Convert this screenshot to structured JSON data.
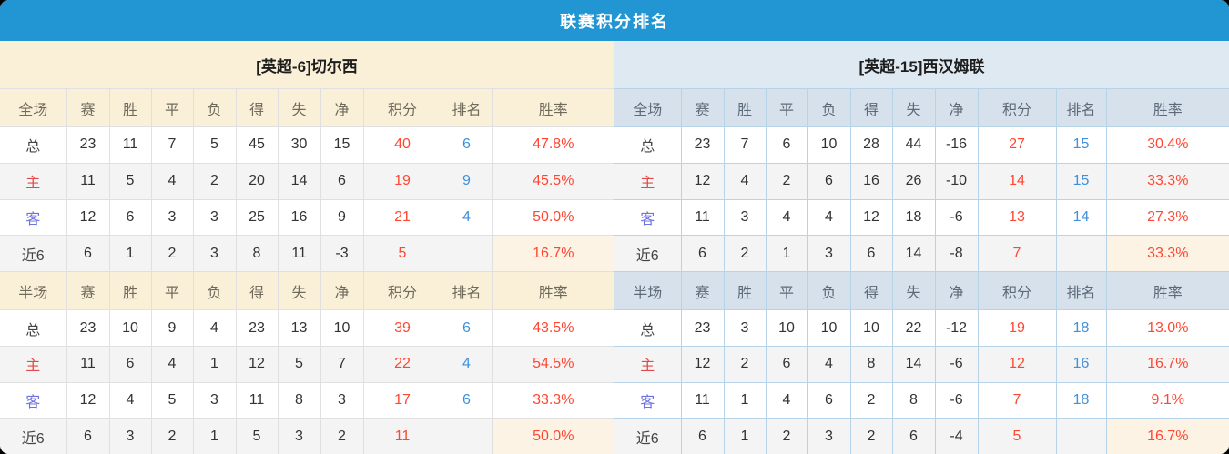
{
  "title": "联赛积分排名",
  "colors": {
    "title_bar": "#2196d3",
    "left_header_bg": "#faf0d8",
    "right_header_bg": "#dfe9f1",
    "points_text": "#ff4733",
    "rank_text": "#4090dc",
    "rate_text": "#ff4733",
    "home_label": "#e04a4a",
    "away_label": "#7173dd",
    "stripe": "#f4f4f4",
    "rate_highlight_bg": "#fcf3e4"
  },
  "stat_headers": [
    "赛",
    "胜",
    "平",
    "负",
    "得",
    "失",
    "净",
    "积分",
    "排名",
    "胜率"
  ],
  "teams": [
    {
      "id": "chelsea",
      "name": "[英超-6]切尔西",
      "sections": [
        {
          "scope": "全场",
          "rows": [
            {
              "label": "总",
              "type": "total",
              "stats": [
                "23",
                "11",
                "7",
                "5",
                "45",
                "30",
                "15"
              ],
              "points": "40",
              "rank": "6",
              "rate": "47.8%"
            },
            {
              "label": "主",
              "type": "home",
              "stats": [
                "11",
                "5",
                "4",
                "2",
                "20",
                "14",
                "6"
              ],
              "points": "19",
              "rank": "9",
              "rate": "45.5%"
            },
            {
              "label": "客",
              "type": "away",
              "stats": [
                "12",
                "6",
                "3",
                "3",
                "25",
                "16",
                "9"
              ],
              "points": "21",
              "rank": "4",
              "rate": "50.0%"
            },
            {
              "label": "近6",
              "type": "recent",
              "stats": [
                "6",
                "1",
                "2",
                "3",
                "8",
                "11",
                "-3"
              ],
              "points": "5",
              "rank": "",
              "rate": "16.7%",
              "rate_highlight": true
            }
          ]
        },
        {
          "scope": "半场",
          "rows": [
            {
              "label": "总",
              "type": "total",
              "stats": [
                "23",
                "10",
                "9",
                "4",
                "23",
                "13",
                "10"
              ],
              "points": "39",
              "rank": "6",
              "rate": "43.5%"
            },
            {
              "label": "主",
              "type": "home",
              "stats": [
                "11",
                "6",
                "4",
                "1",
                "12",
                "5",
                "7"
              ],
              "points": "22",
              "rank": "4",
              "rate": "54.5%"
            },
            {
              "label": "客",
              "type": "away",
              "stats": [
                "12",
                "4",
                "5",
                "3",
                "11",
                "8",
                "3"
              ],
              "points": "17",
              "rank": "6",
              "rate": "33.3%"
            },
            {
              "label": "近6",
              "type": "recent",
              "stats": [
                "6",
                "3",
                "2",
                "1",
                "5",
                "3",
                "2"
              ],
              "points": "11",
              "rank": "",
              "rate": "50.0%",
              "rate_highlight": true
            }
          ]
        }
      ]
    },
    {
      "id": "westham",
      "name": "[英超-15]西汉姆联",
      "sections": [
        {
          "scope": "全场",
          "rows": [
            {
              "label": "总",
              "type": "total",
              "stats": [
                "23",
                "7",
                "6",
                "10",
                "28",
                "44",
                "-16"
              ],
              "points": "27",
              "rank": "15",
              "rate": "30.4%"
            },
            {
              "label": "主",
              "type": "home",
              "stats": [
                "12",
                "4",
                "2",
                "6",
                "16",
                "26",
                "-10"
              ],
              "points": "14",
              "rank": "15",
              "rate": "33.3%"
            },
            {
              "label": "客",
              "type": "away",
              "stats": [
                "11",
                "3",
                "4",
                "4",
                "12",
                "18",
                "-6"
              ],
              "points": "13",
              "rank": "14",
              "rate": "27.3%"
            },
            {
              "label": "近6",
              "type": "recent",
              "stats": [
                "6",
                "2",
                "1",
                "3",
                "6",
                "14",
                "-8"
              ],
              "points": "7",
              "rank": "",
              "rate": "33.3%",
              "rate_highlight": true
            }
          ]
        },
        {
          "scope": "半场",
          "rows": [
            {
              "label": "总",
              "type": "total",
              "stats": [
                "23",
                "3",
                "10",
                "10",
                "10",
                "22",
                "-12"
              ],
              "points": "19",
              "rank": "18",
              "rate": "13.0%"
            },
            {
              "label": "主",
              "type": "home",
              "stats": [
                "12",
                "2",
                "6",
                "4",
                "8",
                "14",
                "-6"
              ],
              "points": "12",
              "rank": "16",
              "rate": "16.7%"
            },
            {
              "label": "客",
              "type": "away",
              "stats": [
                "11",
                "1",
                "4",
                "6",
                "2",
                "8",
                "-6"
              ],
              "points": "7",
              "rank": "18",
              "rate": "9.1%"
            },
            {
              "label": "近6",
              "type": "recent",
              "stats": [
                "6",
                "1",
                "2",
                "3",
                "2",
                "6",
                "-4"
              ],
              "points": "5",
              "rank": "",
              "rate": "16.7%",
              "rate_highlight": true
            }
          ]
        }
      ]
    }
  ]
}
